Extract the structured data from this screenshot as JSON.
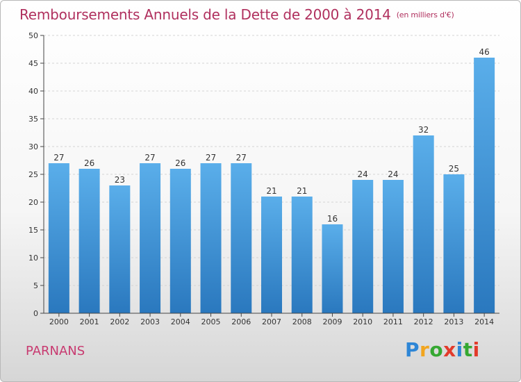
{
  "chart_data": {
    "type": "bar",
    "title": "Remboursements Annuels de la Dette de 2000 à 2014",
    "unit_note": "(en milliers d'€)",
    "categories": [
      "2000",
      "2001",
      "2002",
      "2003",
      "2004",
      "2005",
      "2006",
      "2007",
      "2008",
      "2009",
      "2010",
      "2011",
      "2012",
      "2013",
      "2014"
    ],
    "values": [
      27,
      26,
      23,
      27,
      26,
      27,
      27,
      21,
      21,
      16,
      24,
      24,
      32,
      25,
      46
    ],
    "ylim": [
      0,
      50
    ],
    "yticks": [
      0,
      5,
      10,
      15,
      20,
      25,
      30,
      35,
      40,
      45,
      50
    ],
    "grid": true,
    "bar_color": "#3d92d8",
    "bar_color_light": "#5aaeea",
    "bar_color_dark": "#2a78be"
  },
  "footer": {
    "commune": "PARNANS",
    "brand_letters": [
      "P",
      "r",
      "o",
      "x",
      "i",
      "t",
      "i"
    ],
    "brand_colors": [
      "#2e86d6",
      "#f2a51e",
      "#35a832",
      "#e23b2b",
      "#2e86d6",
      "#35a832",
      "#e23b2b"
    ]
  }
}
